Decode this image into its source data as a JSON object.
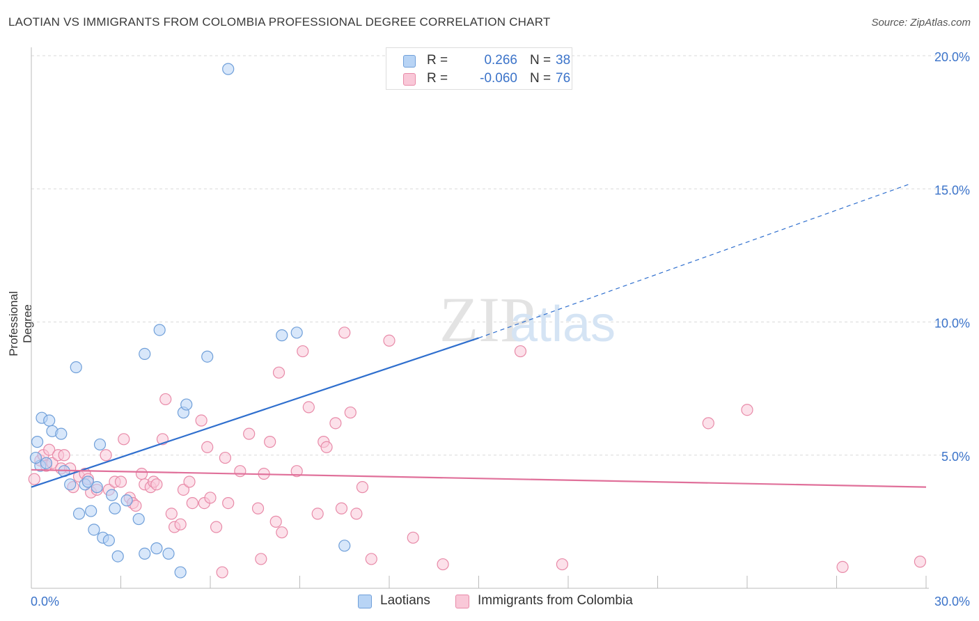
{
  "header": {
    "title": "LAOTIAN VS IMMIGRANTS FROM COLOMBIA PROFESSIONAL DEGREE CORRELATION CHART",
    "source": "Source: ZipAtlas.com"
  },
  "watermark": {
    "zip": "ZIP",
    "atlas": "atlas"
  },
  "legend": {
    "rows": [
      {
        "r_label": "R =",
        "r_value": "0.266",
        "n_label": "N =",
        "n_value": "38"
      },
      {
        "r_label": "R =",
        "r_value": "-0.060",
        "n_label": "N =",
        "n_value": "76"
      }
    ]
  },
  "bottom_legend": {
    "series1": "Laotians",
    "series2": "Immigrants from Colombia"
  },
  "colors": {
    "laotians_fill": "#b8d4f5",
    "laotians_stroke": "#6f9fd9",
    "laotians_line": "#2f6fce",
    "colombia_fill": "#f9c8d8",
    "colombia_stroke": "#e88aa8",
    "colombia_line": "#e0709a",
    "tick_label": "#3b73c9",
    "grid": "#d9d9d9"
  },
  "chart_data": {
    "type": "scatter",
    "ylabel": "Professional Degree",
    "xlim": [
      0,
      30
    ],
    "ylim": [
      0,
      20
    ],
    "x_tick_labels": [
      {
        "value": 0,
        "label": "0.0%"
      },
      {
        "value": 30,
        "label": "30.0%"
      }
    ],
    "y_tick_labels": [
      {
        "value": 5,
        "label": "5.0%"
      },
      {
        "value": 10,
        "label": "10.0%"
      },
      {
        "value": 15,
        "label": "15.0%"
      },
      {
        "value": 20,
        "label": "20.0%"
      }
    ],
    "x_minor_ticks": [
      0,
      3,
      6,
      9,
      12,
      15,
      18,
      21,
      24,
      27,
      30
    ],
    "grid": true,
    "series": [
      {
        "name": "Laotians",
        "points": [
          [
            0.2,
            5.5
          ],
          [
            0.3,
            4.6
          ],
          [
            0.35,
            6.4
          ],
          [
            0.5,
            4.7
          ],
          [
            0.6,
            6.3
          ],
          [
            0.7,
            5.9
          ],
          [
            1.0,
            5.8
          ],
          [
            1.1,
            4.4
          ],
          [
            1.3,
            3.9
          ],
          [
            1.5,
            8.3
          ],
          [
            1.6,
            2.8
          ],
          [
            1.8,
            3.9
          ],
          [
            1.9,
            4.0
          ],
          [
            2.0,
            2.9
          ],
          [
            2.1,
            2.2
          ],
          [
            2.2,
            3.8
          ],
          [
            2.3,
            5.4
          ],
          [
            2.4,
            1.9
          ],
          [
            2.6,
            1.8
          ],
          [
            2.7,
            3.5
          ],
          [
            2.8,
            3.0
          ],
          [
            2.9,
            1.2
          ],
          [
            3.2,
            3.3
          ],
          [
            3.6,
            2.6
          ],
          [
            3.8,
            1.3
          ],
          [
            3.8,
            8.8
          ],
          [
            4.2,
            1.5
          ],
          [
            4.3,
            9.7
          ],
          [
            4.6,
            1.3
          ],
          [
            5.0,
            0.6
          ],
          [
            5.1,
            6.6
          ],
          [
            5.2,
            6.9
          ],
          [
            5.9,
            8.7
          ],
          [
            6.6,
            19.5
          ],
          [
            8.4,
            9.5
          ],
          [
            8.9,
            9.6
          ],
          [
            10.5,
            1.6
          ],
          [
            0.15,
            4.9
          ]
        ],
        "trend": {
          "x": [
            0,
            15
          ],
          "y": [
            3.8,
            9.4
          ]
        },
        "trend_dashed": {
          "x": [
            15,
            29.5
          ],
          "y": [
            9.4,
            15.2
          ]
        }
      },
      {
        "name": "Immigrants from Colombia",
        "points": [
          [
            0.1,
            4.1
          ],
          [
            0.3,
            4.8
          ],
          [
            0.4,
            5.0
          ],
          [
            0.5,
            4.6
          ],
          [
            0.6,
            5.2
          ],
          [
            0.7,
            4.7
          ],
          [
            0.9,
            5.0
          ],
          [
            1.0,
            4.5
          ],
          [
            1.1,
            5.0
          ],
          [
            1.3,
            4.5
          ],
          [
            1.4,
            3.8
          ],
          [
            1.6,
            4.2
          ],
          [
            1.8,
            4.3
          ],
          [
            1.9,
            4.1
          ],
          [
            2.0,
            3.6
          ],
          [
            2.2,
            3.7
          ],
          [
            2.5,
            5.0
          ],
          [
            2.6,
            3.7
          ],
          [
            2.8,
            4.0
          ],
          [
            3.0,
            4.0
          ],
          [
            3.1,
            5.6
          ],
          [
            3.3,
            3.4
          ],
          [
            3.4,
            3.2
          ],
          [
            3.7,
            4.3
          ],
          [
            3.8,
            3.9
          ],
          [
            4.0,
            3.8
          ],
          [
            4.1,
            4.0
          ],
          [
            4.2,
            3.9
          ],
          [
            4.4,
            5.6
          ],
          [
            4.5,
            7.1
          ],
          [
            4.7,
            2.8
          ],
          [
            4.8,
            2.3
          ],
          [
            5.0,
            2.4
          ],
          [
            5.1,
            3.7
          ],
          [
            5.3,
            4.0
          ],
          [
            5.4,
            3.2
          ],
          [
            5.7,
            6.3
          ],
          [
            5.8,
            3.2
          ],
          [
            5.9,
            5.3
          ],
          [
            6.0,
            3.4
          ],
          [
            6.2,
            2.3
          ],
          [
            6.4,
            0.6
          ],
          [
            6.5,
            4.9
          ],
          [
            6.6,
            3.2
          ],
          [
            7.0,
            4.4
          ],
          [
            7.3,
            5.8
          ],
          [
            7.6,
            3.0
          ],
          [
            7.7,
            1.1
          ],
          [
            7.8,
            4.3
          ],
          [
            8.0,
            5.5
          ],
          [
            8.2,
            2.5
          ],
          [
            8.3,
            8.1
          ],
          [
            8.4,
            2.1
          ],
          [
            8.9,
            4.4
          ],
          [
            9.1,
            8.9
          ],
          [
            9.3,
            6.8
          ],
          [
            9.6,
            2.8
          ],
          [
            9.8,
            5.5
          ],
          [
            9.9,
            5.3
          ],
          [
            10.2,
            6.2
          ],
          [
            10.4,
            3.0
          ],
          [
            10.5,
            9.6
          ],
          [
            10.7,
            6.6
          ],
          [
            10.9,
            2.8
          ],
          [
            11.1,
            3.8
          ],
          [
            11.4,
            1.1
          ],
          [
            12.0,
            9.3
          ],
          [
            12.8,
            1.9
          ],
          [
            13.8,
            0.9
          ],
          [
            16.4,
            8.9
          ],
          [
            17.8,
            0.9
          ],
          [
            22.7,
            6.2
          ],
          [
            24.0,
            6.7
          ],
          [
            27.2,
            0.8
          ],
          [
            29.8,
            1.0
          ],
          [
            3.5,
            3.1
          ]
        ],
        "trend": {
          "x": [
            0,
            30
          ],
          "y": [
            4.45,
            3.8
          ]
        }
      }
    ]
  }
}
